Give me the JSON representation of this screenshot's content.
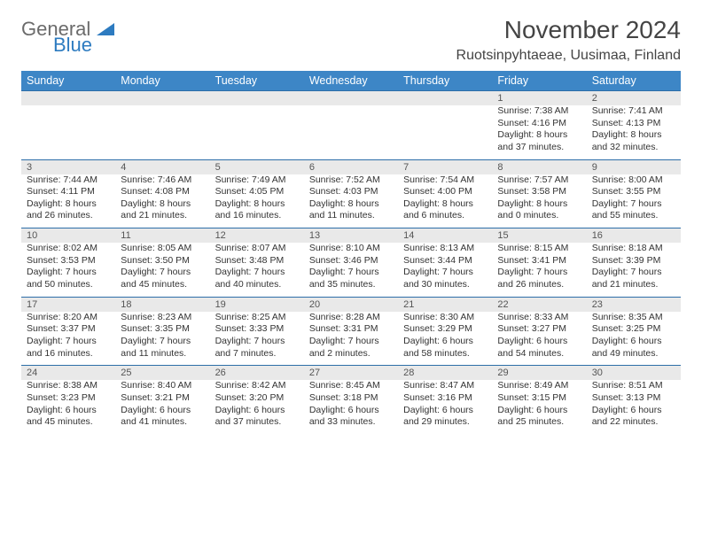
{
  "brand": {
    "general": "General",
    "blue": "Blue"
  },
  "colors": {
    "header_bg": "#3d86c6",
    "header_text": "#ffffff",
    "daynum_bg": "#e9e9e9",
    "rule": "#2d6ea8",
    "logo_grey": "#6b6b6b",
    "logo_blue": "#2d7bc0",
    "body_text": "#333333"
  },
  "typography": {
    "title_fontsize": 28,
    "location_fontsize": 16,
    "dow_fontsize": 12.5,
    "cell_fontsize": 10.5
  },
  "title": "November 2024",
  "location": "Ruotsinpyhtaeae, Uusimaa, Finland",
  "dow": [
    "Sunday",
    "Monday",
    "Tuesday",
    "Wednesday",
    "Thursday",
    "Friday",
    "Saturday"
  ],
  "weeks": [
    [
      null,
      null,
      null,
      null,
      null,
      {
        "n": "1",
        "sunrise": "Sunrise: 7:38 AM",
        "sunset": "Sunset: 4:16 PM",
        "day1": "Daylight: 8 hours",
        "day2": "and 37 minutes."
      },
      {
        "n": "2",
        "sunrise": "Sunrise: 7:41 AM",
        "sunset": "Sunset: 4:13 PM",
        "day1": "Daylight: 8 hours",
        "day2": "and 32 minutes."
      }
    ],
    [
      {
        "n": "3",
        "sunrise": "Sunrise: 7:44 AM",
        "sunset": "Sunset: 4:11 PM",
        "day1": "Daylight: 8 hours",
        "day2": "and 26 minutes."
      },
      {
        "n": "4",
        "sunrise": "Sunrise: 7:46 AM",
        "sunset": "Sunset: 4:08 PM",
        "day1": "Daylight: 8 hours",
        "day2": "and 21 minutes."
      },
      {
        "n": "5",
        "sunrise": "Sunrise: 7:49 AM",
        "sunset": "Sunset: 4:05 PM",
        "day1": "Daylight: 8 hours",
        "day2": "and 16 minutes."
      },
      {
        "n": "6",
        "sunrise": "Sunrise: 7:52 AM",
        "sunset": "Sunset: 4:03 PM",
        "day1": "Daylight: 8 hours",
        "day2": "and 11 minutes."
      },
      {
        "n": "7",
        "sunrise": "Sunrise: 7:54 AM",
        "sunset": "Sunset: 4:00 PM",
        "day1": "Daylight: 8 hours",
        "day2": "and 6 minutes."
      },
      {
        "n": "8",
        "sunrise": "Sunrise: 7:57 AM",
        "sunset": "Sunset: 3:58 PM",
        "day1": "Daylight: 8 hours",
        "day2": "and 0 minutes."
      },
      {
        "n": "9",
        "sunrise": "Sunrise: 8:00 AM",
        "sunset": "Sunset: 3:55 PM",
        "day1": "Daylight: 7 hours",
        "day2": "and 55 minutes."
      }
    ],
    [
      {
        "n": "10",
        "sunrise": "Sunrise: 8:02 AM",
        "sunset": "Sunset: 3:53 PM",
        "day1": "Daylight: 7 hours",
        "day2": "and 50 minutes."
      },
      {
        "n": "11",
        "sunrise": "Sunrise: 8:05 AM",
        "sunset": "Sunset: 3:50 PM",
        "day1": "Daylight: 7 hours",
        "day2": "and 45 minutes."
      },
      {
        "n": "12",
        "sunrise": "Sunrise: 8:07 AM",
        "sunset": "Sunset: 3:48 PM",
        "day1": "Daylight: 7 hours",
        "day2": "and 40 minutes."
      },
      {
        "n": "13",
        "sunrise": "Sunrise: 8:10 AM",
        "sunset": "Sunset: 3:46 PM",
        "day1": "Daylight: 7 hours",
        "day2": "and 35 minutes."
      },
      {
        "n": "14",
        "sunrise": "Sunrise: 8:13 AM",
        "sunset": "Sunset: 3:44 PM",
        "day1": "Daylight: 7 hours",
        "day2": "and 30 minutes."
      },
      {
        "n": "15",
        "sunrise": "Sunrise: 8:15 AM",
        "sunset": "Sunset: 3:41 PM",
        "day1": "Daylight: 7 hours",
        "day2": "and 26 minutes."
      },
      {
        "n": "16",
        "sunrise": "Sunrise: 8:18 AM",
        "sunset": "Sunset: 3:39 PM",
        "day1": "Daylight: 7 hours",
        "day2": "and 21 minutes."
      }
    ],
    [
      {
        "n": "17",
        "sunrise": "Sunrise: 8:20 AM",
        "sunset": "Sunset: 3:37 PM",
        "day1": "Daylight: 7 hours",
        "day2": "and 16 minutes."
      },
      {
        "n": "18",
        "sunrise": "Sunrise: 8:23 AM",
        "sunset": "Sunset: 3:35 PM",
        "day1": "Daylight: 7 hours",
        "day2": "and 11 minutes."
      },
      {
        "n": "19",
        "sunrise": "Sunrise: 8:25 AM",
        "sunset": "Sunset: 3:33 PM",
        "day1": "Daylight: 7 hours",
        "day2": "and 7 minutes."
      },
      {
        "n": "20",
        "sunrise": "Sunrise: 8:28 AM",
        "sunset": "Sunset: 3:31 PM",
        "day1": "Daylight: 7 hours",
        "day2": "and 2 minutes."
      },
      {
        "n": "21",
        "sunrise": "Sunrise: 8:30 AM",
        "sunset": "Sunset: 3:29 PM",
        "day1": "Daylight: 6 hours",
        "day2": "and 58 minutes."
      },
      {
        "n": "22",
        "sunrise": "Sunrise: 8:33 AM",
        "sunset": "Sunset: 3:27 PM",
        "day1": "Daylight: 6 hours",
        "day2": "and 54 minutes."
      },
      {
        "n": "23",
        "sunrise": "Sunrise: 8:35 AM",
        "sunset": "Sunset: 3:25 PM",
        "day1": "Daylight: 6 hours",
        "day2": "and 49 minutes."
      }
    ],
    [
      {
        "n": "24",
        "sunrise": "Sunrise: 8:38 AM",
        "sunset": "Sunset: 3:23 PM",
        "day1": "Daylight: 6 hours",
        "day2": "and 45 minutes."
      },
      {
        "n": "25",
        "sunrise": "Sunrise: 8:40 AM",
        "sunset": "Sunset: 3:21 PM",
        "day1": "Daylight: 6 hours",
        "day2": "and 41 minutes."
      },
      {
        "n": "26",
        "sunrise": "Sunrise: 8:42 AM",
        "sunset": "Sunset: 3:20 PM",
        "day1": "Daylight: 6 hours",
        "day2": "and 37 minutes."
      },
      {
        "n": "27",
        "sunrise": "Sunrise: 8:45 AM",
        "sunset": "Sunset: 3:18 PM",
        "day1": "Daylight: 6 hours",
        "day2": "and 33 minutes."
      },
      {
        "n": "28",
        "sunrise": "Sunrise: 8:47 AM",
        "sunset": "Sunset: 3:16 PM",
        "day1": "Daylight: 6 hours",
        "day2": "and 29 minutes."
      },
      {
        "n": "29",
        "sunrise": "Sunrise: 8:49 AM",
        "sunset": "Sunset: 3:15 PM",
        "day1": "Daylight: 6 hours",
        "day2": "and 25 minutes."
      },
      {
        "n": "30",
        "sunrise": "Sunrise: 8:51 AM",
        "sunset": "Sunset: 3:13 PM",
        "day1": "Daylight: 6 hours",
        "day2": "and 22 minutes."
      }
    ]
  ]
}
